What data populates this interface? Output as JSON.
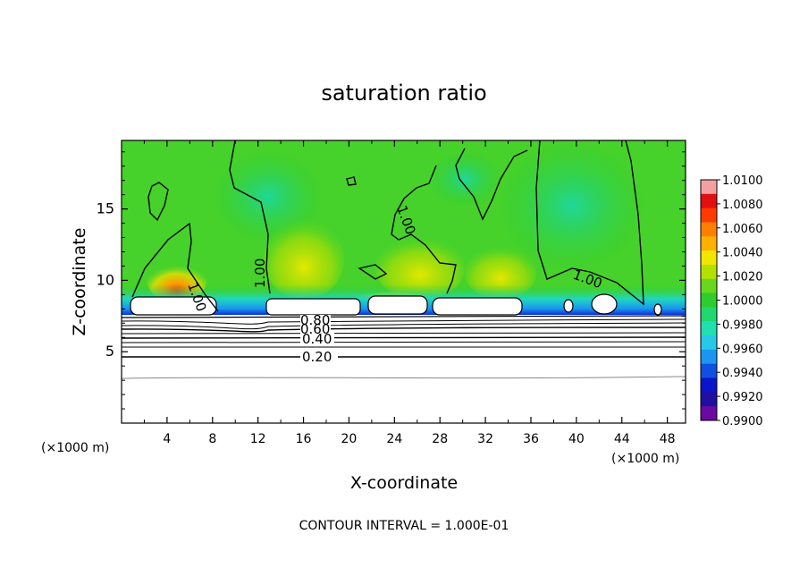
{
  "chart_data": {
    "type": "heatmap",
    "title": "saturation ratio",
    "xlabel": "X-coordinate",
    "ylabel": "Z-coordinate",
    "x_unit": "(×1000 m)",
    "x_unit_right": "(×1000 m)",
    "xlim": [
      0,
      49.6
    ],
    "ylim": [
      0,
      19.8
    ],
    "x_ticks": [
      4,
      8,
      12,
      16,
      20,
      24,
      28,
      32,
      36,
      40,
      44,
      48
    ],
    "y_ticks": [
      5,
      10,
      15
    ],
    "grid": false,
    "legend": "right",
    "colorbar": {
      "min": 0.99,
      "max": 1.01,
      "step": 0.001,
      "labels": [
        "1.0100",
        "1.0080",
        "1.0060",
        "1.0040",
        "1.0020",
        "1.0000",
        "0.9980",
        "0.9960",
        "0.9940",
        "0.9920",
        "0.9900"
      ],
      "colors": [
        "#f4a0a0",
        "#e01010",
        "#ff3a00",
        "#ff8000",
        "#ffb000",
        "#f2e600",
        "#b4e000",
        "#66d81e",
        "#2ecc2e",
        "#20d870",
        "#20e0b0",
        "#28c8e8",
        "#1a96f0",
        "#1050e0",
        "#0a14c8",
        "#2010a0",
        "#6a0aa0"
      ]
    },
    "contour_labels": [
      "1.00",
      "1.00",
      "1.00",
      "1.00",
      "0.80",
      "0.60",
      "0.40",
      "0.20"
    ],
    "contour_interval_text": "CONTOUR INTERVAL = 1.000E-01"
  }
}
